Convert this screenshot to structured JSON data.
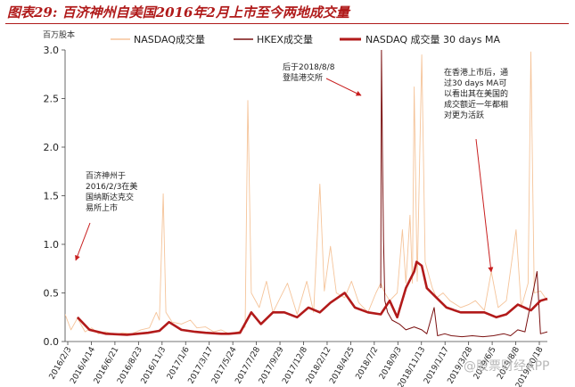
{
  "title": "图表29: 百济神州自美国2016年2月上市至今两地成交量",
  "watermark": "@股票财经APP",
  "colors": {
    "nasdaq": "#f5c49a",
    "hkex": "#7a1010",
    "ma": "#b21a1a",
    "annotation": "#c81e1e",
    "title": "#b01a1a"
  },
  "chart_data": {
    "type": "line",
    "ylabel": "百万股本",
    "ylim": [
      0,
      3.0
    ],
    "yticks": [
      0.0,
      0.5,
      1.0,
      1.5,
      2.0,
      2.5,
      3.0
    ],
    "ytick_labels": [
      "0.0",
      "0.5",
      "1.0",
      "1.5",
      "2.0",
      "2.5",
      "3.0"
    ],
    "xlim": [
      "2016-02-03",
      "2019-12-05"
    ],
    "xtick_labels": [
      "2016/2/3",
      "2016/4/14",
      "2016/6/21",
      "2016/8/23",
      "2016/11/3",
      "2017/1/6",
      "2017/3/17",
      "2017/5/24",
      "2017/7/28",
      "2017/9/29",
      "2017/12/8",
      "2018/2/12",
      "2018/4/25",
      "2018/7/2",
      "2018/9/3",
      "2018/11/13",
      "2019/1/17",
      "2019/3/28",
      "2019/6/5",
      "2019/8/8",
      "2019/10/18"
    ],
    "legend": {
      "position": "top",
      "entries": [
        "NASDAQ成交量",
        "HKEX成交量",
        "NASDAQ 成交量 30 days MA"
      ]
    },
    "series": [
      {
        "name": "NASDAQ成交量",
        "style": "thin-line",
        "points": [
          [
            "2016-02-03",
            0.28
          ],
          [
            "2016-02-20",
            0.12
          ],
          [
            "2016-03-10",
            0.24
          ],
          [
            "2016-04-01",
            0.1
          ],
          [
            "2016-04-20",
            0.14
          ],
          [
            "2016-05-10",
            0.08
          ],
          [
            "2016-06-01",
            0.1
          ],
          [
            "2016-06-25",
            0.07
          ],
          [
            "2016-07-20",
            0.09
          ],
          [
            "2016-08-15",
            0.08
          ],
          [
            "2016-09-10",
            0.12
          ],
          [
            "2016-10-05",
            0.14
          ],
          [
            "2016-10-25",
            0.3
          ],
          [
            "2016-11-03",
            0.22
          ],
          [
            "2016-11-14",
            1.52
          ],
          [
            "2016-11-22",
            0.3
          ],
          [
            "2016-12-10",
            0.2
          ],
          [
            "2017-01-06",
            0.18
          ],
          [
            "2017-02-01",
            0.22
          ],
          [
            "2017-02-20",
            0.14
          ],
          [
            "2017-03-17",
            0.15
          ],
          [
            "2017-04-10",
            0.1
          ],
          [
            "2017-05-01",
            0.12
          ],
          [
            "2017-05-24",
            0.08
          ],
          [
            "2017-06-20",
            0.1
          ],
          [
            "2017-07-10",
            0.15
          ],
          [
            "2017-07-18",
            2.48
          ],
          [
            "2017-07-28",
            0.5
          ],
          [
            "2017-08-20",
            0.35
          ],
          [
            "2017-09-10",
            0.62
          ],
          [
            "2017-09-29",
            0.3
          ],
          [
            "2017-10-20",
            0.45
          ],
          [
            "2017-11-10",
            0.6
          ],
          [
            "2017-12-08",
            0.28
          ],
          [
            "2018-01-05",
            0.62
          ],
          [
            "2018-01-25",
            0.3
          ],
          [
            "2018-02-12",
            1.62
          ],
          [
            "2018-02-25",
            0.52
          ],
          [
            "2018-03-15",
            0.98
          ],
          [
            "2018-04-01",
            0.5
          ],
          [
            "2018-04-25",
            0.45
          ],
          [
            "2018-05-15",
            0.62
          ],
          [
            "2018-06-05",
            0.4
          ],
          [
            "2018-07-02",
            0.3
          ],
          [
            "2018-07-25",
            0.5
          ],
          [
            "2018-08-08",
            0.6
          ],
          [
            "2018-08-20",
            0.5
          ],
          [
            "2018-09-03",
            0.42
          ],
          [
            "2018-09-25",
            0.5
          ],
          [
            "2018-10-10",
            1.15
          ],
          [
            "2018-10-20",
            0.6
          ],
          [
            "2018-11-01",
            1.3
          ],
          [
            "2018-11-08",
            0.6
          ],
          [
            "2018-11-13",
            2.62
          ],
          [
            "2018-11-22",
            0.62
          ],
          [
            "2018-12-05",
            2.95
          ],
          [
            "2018-12-15",
            0.82
          ],
          [
            "2019-01-05",
            0.55
          ],
          [
            "2019-01-17",
            0.45
          ],
          [
            "2019-02-05",
            0.5
          ],
          [
            "2019-02-25",
            0.42
          ],
          [
            "2019-03-28",
            0.35
          ],
          [
            "2019-04-20",
            0.38
          ],
          [
            "2019-05-10",
            0.42
          ],
          [
            "2019-06-05",
            0.32
          ],
          [
            "2019-06-25",
            0.72
          ],
          [
            "2019-07-15",
            0.35
          ],
          [
            "2019-08-08",
            0.42
          ],
          [
            "2019-09-05",
            1.15
          ],
          [
            "2019-09-20",
            0.35
          ],
          [
            "2019-10-10",
            0.6
          ],
          [
            "2019-10-18",
            2.98
          ],
          [
            "2019-10-28",
            0.5
          ],
          [
            "2019-11-15",
            0.52
          ],
          [
            "2019-12-05",
            0.42
          ]
        ]
      },
      {
        "name": "HKEX成交量",
        "style": "thin-line",
        "points": [
          [
            "2018-08-08",
            0.55
          ],
          [
            "2018-08-10",
            3.0
          ],
          [
            "2018-08-13",
            1.95
          ],
          [
            "2018-08-16",
            1.05
          ],
          [
            "2018-08-20",
            0.42
          ],
          [
            "2018-08-28",
            0.3
          ],
          [
            "2018-09-10",
            0.22
          ],
          [
            "2018-10-01",
            0.18
          ],
          [
            "2018-10-20",
            0.12
          ],
          [
            "2018-11-13",
            0.15
          ],
          [
            "2018-12-05",
            0.12
          ],
          [
            "2018-12-20",
            0.08
          ],
          [
            "2019-01-10",
            0.35
          ],
          [
            "2019-01-20",
            0.06
          ],
          [
            "2019-02-10",
            0.08
          ],
          [
            "2019-03-01",
            0.06
          ],
          [
            "2019-04-01",
            0.05
          ],
          [
            "2019-05-01",
            0.06
          ],
          [
            "2019-06-01",
            0.05
          ],
          [
            "2019-07-01",
            0.06
          ],
          [
            "2019-08-01",
            0.08
          ],
          [
            "2019-08-20",
            0.06
          ],
          [
            "2019-09-10",
            0.12
          ],
          [
            "2019-10-01",
            0.1
          ],
          [
            "2019-10-25",
            0.52
          ],
          [
            "2019-11-05",
            0.72
          ],
          [
            "2019-11-15",
            0.08
          ],
          [
            "2019-12-05",
            0.1
          ]
        ]
      },
      {
        "name": "NASDAQ 成交量 30 days MA",
        "style": "thick-line",
        "points": [
          [
            "2016-03-10",
            0.25
          ],
          [
            "2016-04-14",
            0.12
          ],
          [
            "2016-06-01",
            0.08
          ],
          [
            "2016-08-01",
            0.07
          ],
          [
            "2016-10-01",
            0.09
          ],
          [
            "2016-11-03",
            0.11
          ],
          [
            "2016-12-01",
            0.2
          ],
          [
            "2017-01-06",
            0.12
          ],
          [
            "2017-02-15",
            0.1
          ],
          [
            "2017-03-17",
            0.09
          ],
          [
            "2017-05-01",
            0.08
          ],
          [
            "2017-05-24",
            0.08
          ],
          [
            "2017-06-25",
            0.09
          ],
          [
            "2017-07-28",
            0.3
          ],
          [
            "2017-08-25",
            0.18
          ],
          [
            "2017-09-29",
            0.3
          ],
          [
            "2017-11-01",
            0.3
          ],
          [
            "2017-12-08",
            0.25
          ],
          [
            "2018-01-10",
            0.35
          ],
          [
            "2018-02-12",
            0.3
          ],
          [
            "2018-03-15",
            0.4
          ],
          [
            "2018-04-25",
            0.5
          ],
          [
            "2018-05-25",
            0.35
          ],
          [
            "2018-07-02",
            0.3
          ],
          [
            "2018-08-08",
            0.28
          ],
          [
            "2018-09-03",
            0.42
          ],
          [
            "2018-09-25",
            0.25
          ],
          [
            "2018-10-20",
            0.55
          ],
          [
            "2018-11-13",
            0.72
          ],
          [
            "2018-11-20",
            0.82
          ],
          [
            "2018-12-05",
            0.78
          ],
          [
            "2018-12-20",
            0.55
          ],
          [
            "2019-01-17",
            0.45
          ],
          [
            "2019-02-15",
            0.35
          ],
          [
            "2019-03-28",
            0.3
          ],
          [
            "2019-05-01",
            0.3
          ],
          [
            "2019-06-05",
            0.3
          ],
          [
            "2019-07-10",
            0.25
          ],
          [
            "2019-08-08",
            0.28
          ],
          [
            "2019-09-10",
            0.38
          ],
          [
            "2019-10-18",
            0.32
          ],
          [
            "2019-11-15",
            0.42
          ],
          [
            "2019-12-05",
            0.44
          ]
        ]
      }
    ],
    "annotations": [
      {
        "id": "listing",
        "text_lines": [
          "百济神州于",
          "2016/2/3在美",
          "国纳斯达克交",
          "易所上市"
        ]
      },
      {
        "id": "hk-listing",
        "text_lines": [
          "后于2018/8/8",
          "登陆港交所"
        ]
      },
      {
        "id": "after-hk",
        "text_lines": [
          "在香港上市后，通",
          "过30 days MA可",
          "以看出其在美国的",
          "成交额近一年都相",
          "对更为活跃"
        ]
      }
    ]
  }
}
